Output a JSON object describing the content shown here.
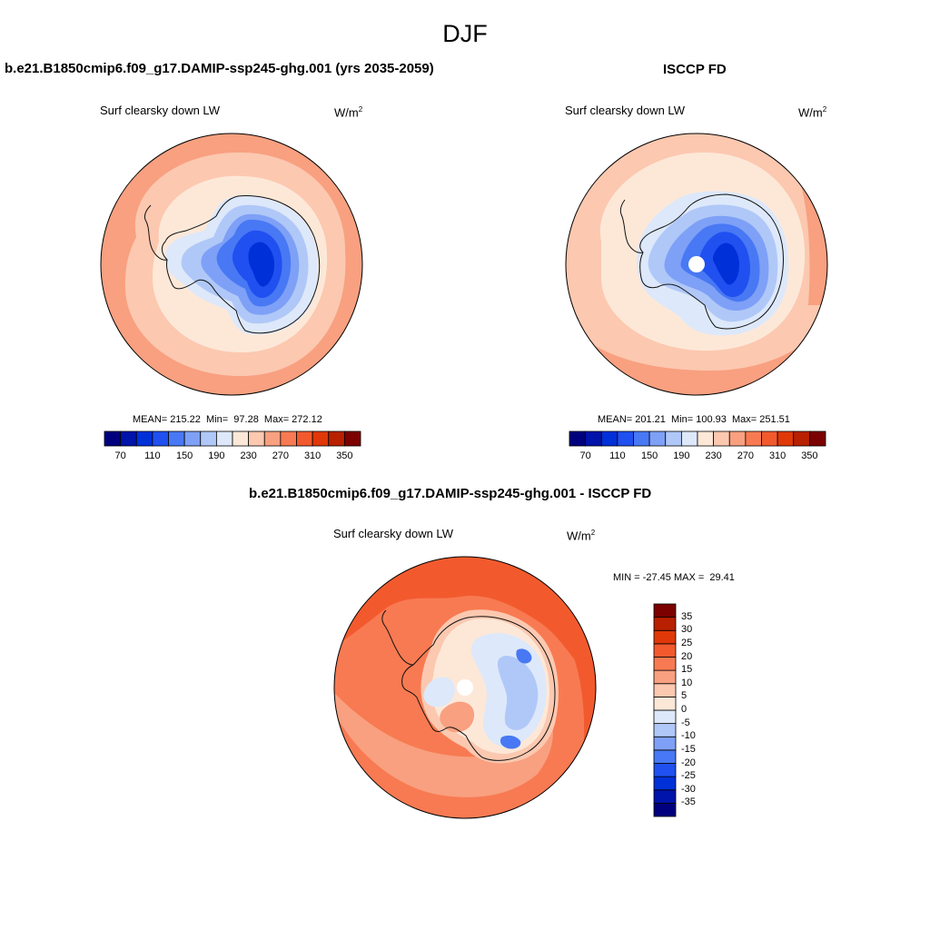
{
  "figure": {
    "season": "DJF"
  },
  "panels": [
    {
      "title": "b.e21.B1850cmip6.f09_g17.DAMIP-ssp245-ghg.001 (yrs 2035-2059)",
      "variable": "Surf clearsky down LW",
      "units_base": "W/m",
      "units_exp": "2",
      "stats": "MEAN= 215.22  Min=  97.28  Max= 272.12"
    },
    {
      "title": "ISCCP FD",
      "variable": "Surf clearsky down LW",
      "units_base": "W/m",
      "units_exp": "2",
      "stats": "MEAN= 201.21  Min= 100.93  Max= 251.51"
    },
    {
      "title": "b.e21.B1850cmip6.f09_g17.DAMIP-ssp245-ghg.001 - ISCCP FD",
      "variable": "Surf clearsky down LW",
      "units_base": "W/m",
      "units_exp": "2",
      "stats": "MIN = -27.45 MAX =  29.41"
    }
  ],
  "colorbar_main": {
    "colors": [
      "#00007f",
      "#0013aa",
      "#0030d8",
      "#2050f0",
      "#4878f4",
      "#7ea0f6",
      "#b0c8f8",
      "#dde8fa",
      "#fde8d8",
      "#fcc8b0",
      "#f8a080",
      "#f87a52",
      "#f25a2e",
      "#e03808",
      "#b82000",
      "#7c0000"
    ],
    "labels": [
      "70",
      "110",
      "150",
      "190",
      "230",
      "270",
      "310",
      "350"
    ]
  },
  "colorbar_diff": {
    "colors": [
      "#00007f",
      "#0013aa",
      "#0030d8",
      "#2050f0",
      "#4878f4",
      "#7ea0f6",
      "#b0c8f8",
      "#dde8fa",
      "#fde8d8",
      "#fcc8b0",
      "#f8a080",
      "#f87a52",
      "#f25a2e",
      "#e03808",
      "#b82000",
      "#7c0000"
    ],
    "labels": [
      "35",
      "30",
      "25",
      "20",
      "15",
      "10",
      "5",
      "0",
      "-5",
      "-10",
      "-15",
      "-20",
      "-25",
      "-30",
      "-35"
    ]
  },
  "map_colors": {
    "ocean_far": "#f8a080",
    "ocean_mid": "#fcc8b0",
    "ocean_near": "#fde8d8",
    "ice_edge": "#dde8fa",
    "ice_1": "#b0c8f8",
    "ice_2": "#7ea0f6",
    "ice_3": "#4878f4",
    "ice_4": "#2050f0",
    "ice_5": "#0030d8",
    "diff_far": "#f25a2e",
    "diff_mid": "#f87a52",
    "diff_near": "#f8a080",
    "diff_coast": "#fcc8b0",
    "diff_land": "#fde8d8",
    "diff_neg": "#dde8fa",
    "diff_neg2": "#b0c8f8",
    "diff_neg3": "#4878f4"
  }
}
